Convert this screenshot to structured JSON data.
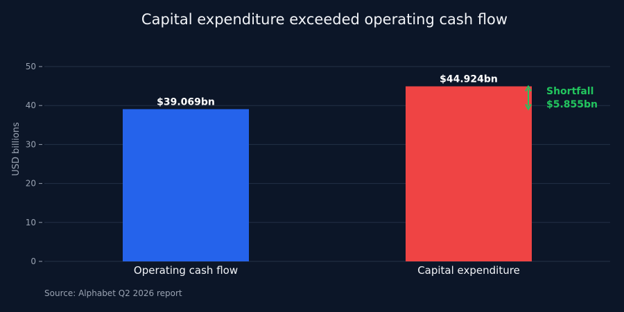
{
  "chart_data": {
    "type": "bar",
    "title": "Capital expenditure exceeded operating cash flow",
    "xlabel": "",
    "ylabel": "USD billions",
    "categories": [
      "Operating cash flow",
      "Capital expenditure"
    ],
    "values": [
      39.069,
      44.924
    ],
    "data_labels": [
      "$39.069bn",
      "$44.924bn"
    ],
    "colors": [
      "#2563eb",
      "#ef4444"
    ],
    "ylim": [
      0,
      50
    ],
    "yticks": [
      0,
      10,
      20,
      30,
      40,
      50
    ],
    "grid": true,
    "annotation": {
      "line1": "Shortfall",
      "line2": "$5.855bn",
      "from": 39.069,
      "to": 44.924,
      "color": "#22c55e"
    },
    "source": "Source: Alphabet Q2 2026 report"
  }
}
